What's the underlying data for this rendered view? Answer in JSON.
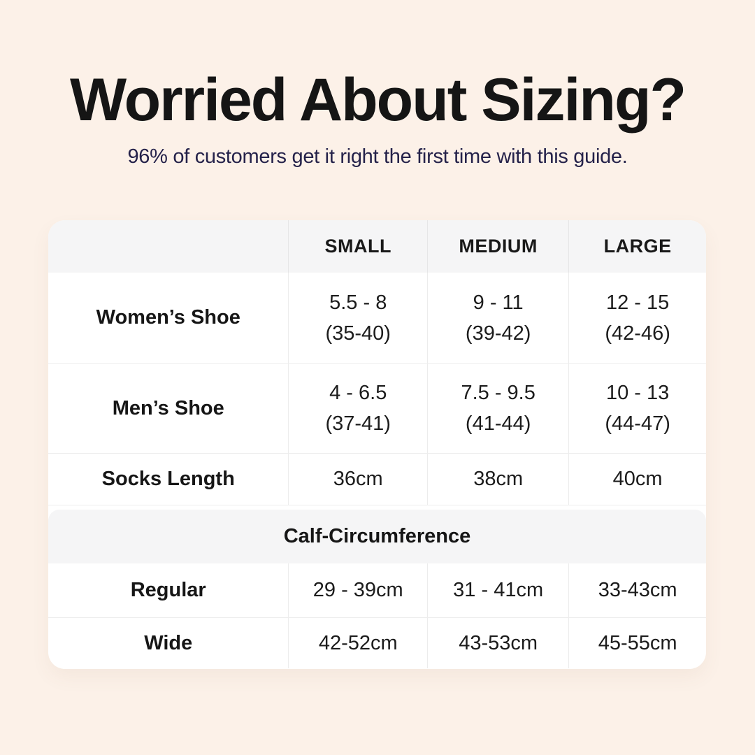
{
  "colors": {
    "background": "#fcf1e8",
    "card": "#ffffff",
    "header_row": "#f5f5f6",
    "section_band": "#f5f5f6",
    "divider": "#ececec",
    "title_text": "#151515",
    "subtitle_text": "#25224a",
    "table_text": "#1c1c1c"
  },
  "chart_data": {
    "type": "table",
    "title": "Worried About Sizing?",
    "subtitle": "96% of customers get it right the first time with this guide.",
    "columns": [
      "",
      "SMALL",
      "MEDIUM",
      "LARGE"
    ],
    "rows": [
      {
        "label": "Women’s Shoe",
        "small": [
          "5.5 - 8",
          "(35-40)"
        ],
        "medium": [
          "9 - 11",
          "(39-42)"
        ],
        "large": [
          "12 - 15",
          "(42-46)"
        ]
      },
      {
        "label": "Men’s Shoe",
        "small": [
          "4 - 6.5",
          "(37-41)"
        ],
        "medium": [
          "7.5 - 9.5",
          "(41-44)"
        ],
        "large": [
          "10 - 13",
          "(44-47)"
        ]
      },
      {
        "label": "Socks Length",
        "small": "36cm",
        "medium": "38cm",
        "large": "40cm"
      }
    ],
    "section_header": "Calf-Circumference",
    "section_rows": [
      {
        "label": "Regular",
        "small": "29 - 39cm",
        "medium": "31 - 41cm",
        "large": "33-43cm"
      },
      {
        "label": "Wide",
        "small": "42-52cm",
        "medium": "43-53cm",
        "large": "45-55cm"
      }
    ]
  }
}
